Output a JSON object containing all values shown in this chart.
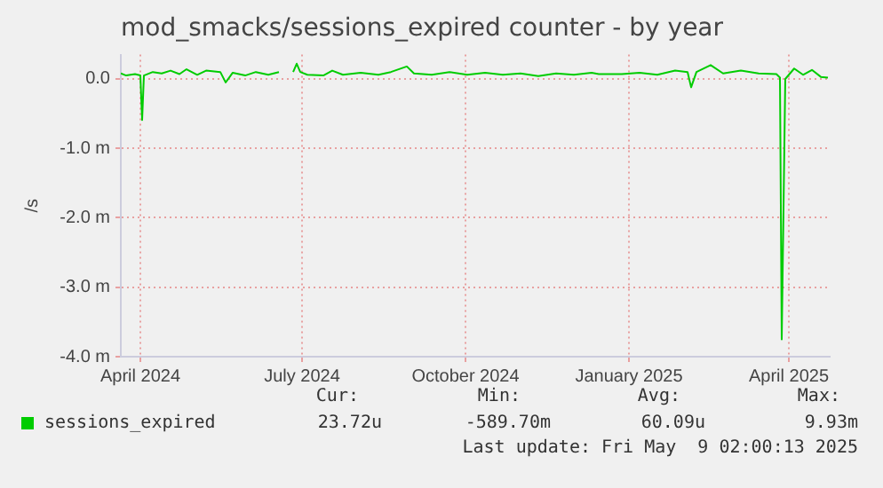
{
  "chart_data": {
    "type": "line",
    "title": "mod_smacks/sessions_expired counter - by year",
    "ylabel": "/s",
    "x": [
      "2024-03-21",
      "2024-03-24",
      "2024-03-29",
      "2024-04-01",
      "2024-04-02",
      "2024-04-03",
      "2024-04-08",
      "2024-04-13",
      "2024-04-18",
      "2024-04-23",
      "2024-04-27",
      "2024-05-03",
      "2024-05-08",
      "2024-05-16",
      "2024-05-19",
      "2024-05-23",
      "2024-05-30",
      "2024-06-05",
      "2024-06-12",
      "2024-06-18",
      "2024-06-22",
      "2024-06-26",
      "2024-06-28",
      "2024-06-30",
      "2024-07-04",
      "2024-07-13",
      "2024-07-18",
      "2024-07-24",
      "2024-08-03",
      "2024-08-13",
      "2024-08-20",
      "2024-08-29",
      "2024-09-02",
      "2024-09-12",
      "2024-09-22",
      "2024-10-02",
      "2024-10-12",
      "2024-10-22",
      "2024-11-01",
      "2024-11-11",
      "2024-11-21",
      "2024-12-01",
      "2024-12-11",
      "2024-12-15",
      "2024-12-28",
      "2025-01-07",
      "2025-01-17",
      "2025-01-27",
      "2025-02-03",
      "2025-02-05",
      "2025-02-08",
      "2025-02-16",
      "2025-02-23",
      "2025-03-05",
      "2025-03-15",
      "2025-03-25",
      "2025-03-27",
      "2025-03-28",
      "2025-03-30",
      "2025-04-04",
      "2025-04-09",
      "2025-04-14",
      "2025-04-19",
      "2025-04-23"
    ],
    "series": [
      {
        "name": "sessions_expired",
        "color": "#00cc00",
        "values": [
          0.08,
          0.05,
          0.07,
          0.05,
          -0.59,
          0.05,
          0.1,
          0.08,
          0.12,
          0.07,
          0.14,
          0.06,
          0.12,
          0.1,
          -0.05,
          0.09,
          0.05,
          0.1,
          0.06,
          0.1,
          null,
          0.1,
          0.22,
          0.1,
          0.06,
          0.05,
          0.12,
          0.06,
          0.09,
          0.06,
          0.1,
          0.18,
          0.08,
          0.06,
          0.1,
          0.06,
          0.09,
          0.06,
          0.08,
          0.04,
          0.08,
          0.06,
          0.09,
          0.07,
          0.07,
          0.09,
          0.06,
          0.12,
          0.1,
          -0.12,
          0.1,
          0.2,
          0.08,
          0.12,
          0.08,
          0.07,
          0.02,
          -3.75,
          0.0,
          0.15,
          0.06,
          0.13,
          0.03,
          0.02
        ]
      }
    ],
    "xlim": [
      "2024-03-21",
      "2025-04-24"
    ],
    "xticks": [
      {
        "value": "2024-04-01",
        "label": "April 2024"
      },
      {
        "value": "2024-07-01",
        "label": "July 2024"
      },
      {
        "value": "2024-10-01",
        "label": "October 2024"
      },
      {
        "value": "2025-01-01",
        "label": "January 2025"
      },
      {
        "value": "2025-04-01",
        "label": "April 2025"
      }
    ],
    "ylim": [
      -4.0,
      0.35
    ],
    "yticks": [
      {
        "value": -4,
        "label": "-4.0 m"
      },
      {
        "value": -3,
        "label": "-3.0 m"
      },
      {
        "value": -2,
        "label": "-2.0 m"
      },
      {
        "value": -1,
        "label": "-1.0 m"
      },
      {
        "value": 0,
        "label": "0.0"
      }
    ],
    "grid": true,
    "legend": "bottom",
    "marker": "none",
    "line_style": "solid",
    "annotations": [
      "Cur:",
      "Min:",
      "Avg:",
      "Max:",
      "23.72u",
      "-589.70m",
      "60.09u",
      "9.93m",
      "Last update: Fri May  9 02:00:13 2025"
    ]
  }
}
